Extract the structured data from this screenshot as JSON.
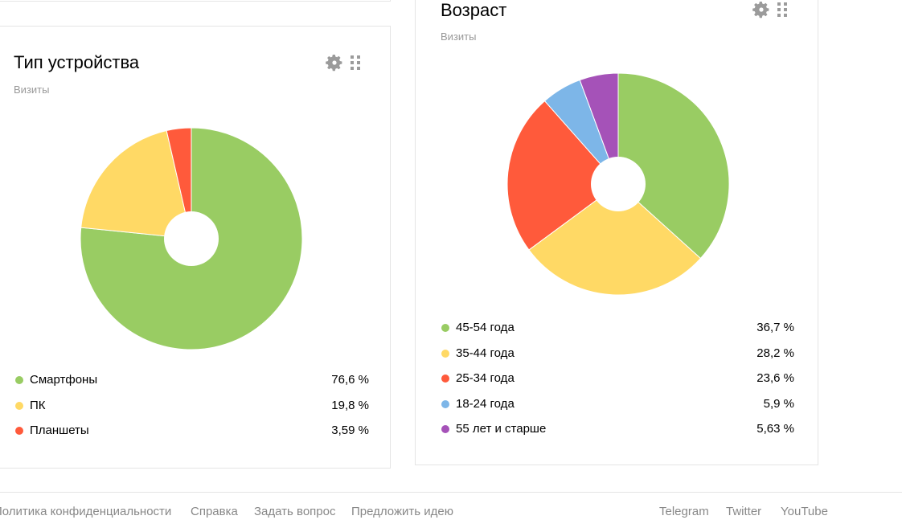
{
  "cards": {
    "device": {
      "title": "Тип устройства",
      "subtitle": "Визиты",
      "settings_icon": "gear-icon",
      "drag_icon": "grip-icon"
    },
    "age": {
      "title": "Возраст",
      "subtitle": "Визиты",
      "settings_icon": "gear-icon",
      "drag_icon": "grip-icon"
    }
  },
  "chart_data": [
    {
      "type": "pie",
      "title": "Тип устройства",
      "subtitle": "Визиты",
      "donut": true,
      "start_angle_deg": 0,
      "slices": [
        {
          "label": "Смартфоны",
          "value": 76.6,
          "value_text": "76,6 %",
          "color": "#99cc63"
        },
        {
          "label": "ПК",
          "value": 19.8,
          "value_text": "19,8 %",
          "color": "#ffd965"
        },
        {
          "label": "Планшеты",
          "value": 3.59,
          "value_text": "3,59 %",
          "color": "#ff5a3b"
        }
      ]
    },
    {
      "type": "pie",
      "title": "Возраст",
      "subtitle": "Визиты",
      "donut": true,
      "start_angle_deg": 0,
      "slices": [
        {
          "label": "45-54 года",
          "value": 36.7,
          "value_text": "36,7 %",
          "color": "#99cc63"
        },
        {
          "label": "35-44 года",
          "value": 28.2,
          "value_text": "28,2 %",
          "color": "#ffd965"
        },
        {
          "label": "25-34 года",
          "value": 23.6,
          "value_text": "23,6 %",
          "color": "#ff5a3b"
        },
        {
          "label": "18-24 года",
          "value": 5.9,
          "value_text": "5,9 %",
          "color": "#7db6e8"
        },
        {
          "label": "55 лет и старше",
          "value": 5.63,
          "value_text": "5,63 %",
          "color": "#a552b8"
        }
      ]
    }
  ],
  "footer": {
    "links": [
      "Политика конфиденциальности",
      "Справка",
      "Задать вопрос",
      "Предложить идею"
    ],
    "social": [
      "Telegram",
      "Twitter",
      "YouTube"
    ]
  }
}
